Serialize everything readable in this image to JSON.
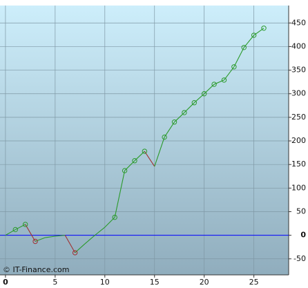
{
  "chart_data": {
    "type": "line",
    "watermark": "© IT-Finance.com",
    "x": [
      0,
      1,
      2,
      3,
      4,
      5,
      6,
      7,
      8,
      9,
      10,
      11,
      12,
      13,
      14,
      15,
      16,
      17,
      18,
      19,
      20,
      21,
      22,
      23,
      24,
      25,
      26
    ],
    "series": [
      {
        "values": [
          0,
          12,
          23,
          -13,
          -5,
          -2,
          0,
          -37,
          -18,
          0,
          17,
          38,
          137,
          158,
          178,
          146,
          208,
          240,
          260,
          281,
          300,
          320,
          329,
          357,
          398,
          424,
          439
        ],
        "markers": [
          false,
          true,
          true,
          true,
          false,
          false,
          false,
          true,
          false,
          false,
          false,
          true,
          true,
          true,
          true,
          false,
          true,
          true,
          true,
          true,
          true,
          true,
          true,
          true,
          true,
          true,
          true
        ]
      }
    ],
    "up_color": "#2a9a2a",
    "down_color": "#a03030",
    "zero_line_color": "#0000ff",
    "xlim": [
      -0.55,
      28.5
    ],
    "ylim": [
      -84,
      487
    ],
    "xticks": [
      0,
      5,
      10,
      15,
      20,
      25
    ],
    "yticks": [
      -50,
      0,
      50,
      100,
      150,
      200,
      250,
      300,
      350,
      400,
      450
    ],
    "grid": true
  }
}
